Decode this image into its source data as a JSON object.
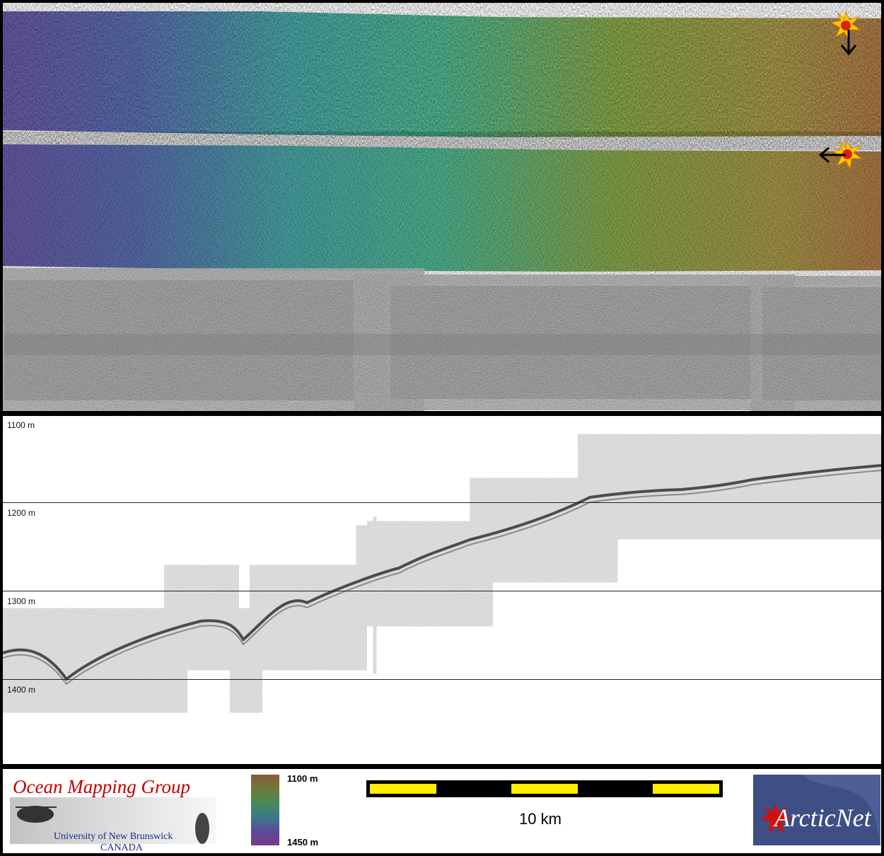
{
  "profile": {
    "depth_labels": [
      "1100 m",
      "1200 m",
      "1300 m",
      "1400 m"
    ]
  },
  "legend": {
    "colorbar_top_label": "1100 m",
    "colorbar_bottom_label": "1450 m",
    "scale_label": "10 km"
  },
  "logos": {
    "omg_title": "Ocean Mapping Group",
    "omg_subtitle1": "University of New Brunswick",
    "omg_subtitle2": "CANADA",
    "arcticnet_text": "ArcticNet"
  },
  "icons": {
    "sun_top": "sun-icon",
    "arrow_top": "arrow-down-icon",
    "sun_middle": "sun-icon",
    "arrow_middle": "arrow-left-icon"
  },
  "colors": {
    "background_frame": "#000000",
    "scale_fill": "#ffee00",
    "omg_title": "#c40000",
    "arcticnet_bg": "#3e4f86"
  }
}
